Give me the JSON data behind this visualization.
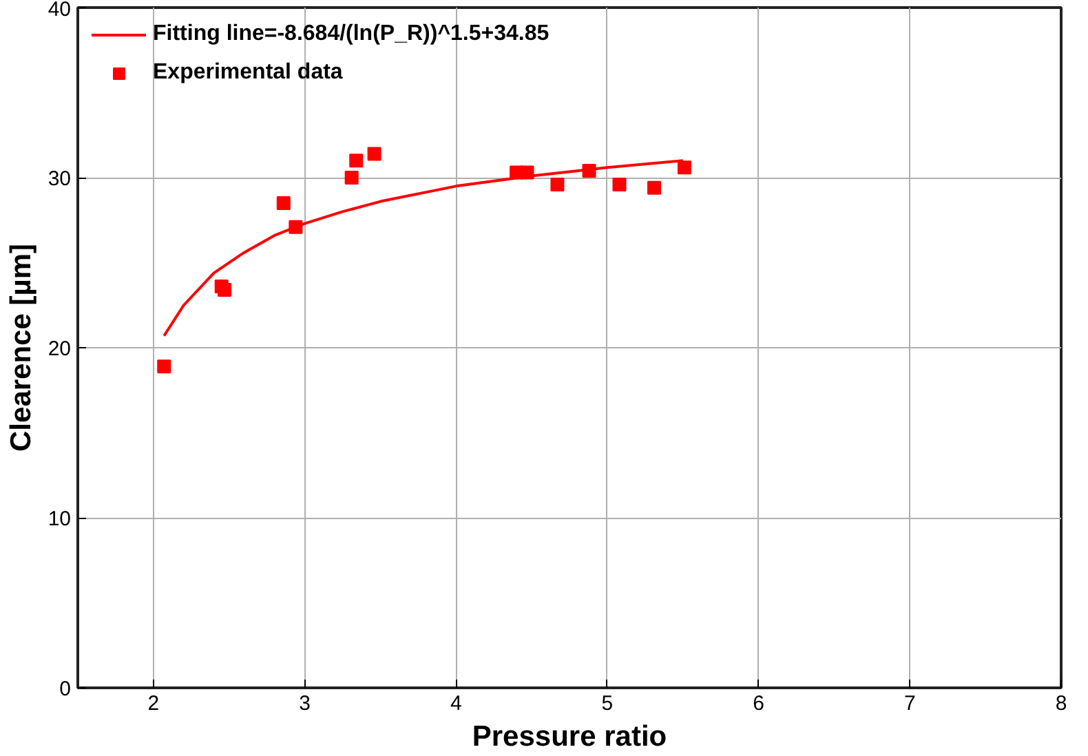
{
  "chart_data": {
    "type": "scatter",
    "xlabel": "Pressure ratio",
    "ylabel": "Clearence [µm]",
    "xlim": [
      1.5,
      8
    ],
    "ylim": [
      0,
      40
    ],
    "xticks": [
      2,
      3,
      4,
      5,
      6,
      7,
      8
    ],
    "yticks": [
      0,
      10,
      20,
      30,
      40
    ],
    "grid": true,
    "legend": "top left",
    "series": [
      {
        "name": "Fitting line=-8.684/(ln(P_R))^1.5+34.85",
        "type": "line",
        "color": "#ff0000",
        "line_style": "solid",
        "x": [
          2.07,
          2.2,
          2.4,
          2.6,
          2.8,
          3.0,
          3.25,
          3.5,
          4.0,
          4.5,
          5.0,
          5.5
        ],
        "values": [
          20.7,
          22.5,
          24.4,
          25.6,
          26.6,
          27.3,
          28.0,
          28.6,
          29.5,
          30.1,
          30.6,
          31.0
        ]
      },
      {
        "name": "Experimental data",
        "marker": "square",
        "color": "#ff0000",
        "x": [
          2.07,
          2.45,
          2.47,
          2.86,
          2.94,
          3.31,
          3.34,
          3.46,
          4.4,
          4.47,
          4.67,
          4.88,
          5.08,
          5.31,
          5.51
        ],
        "values": [
          18.9,
          23.6,
          23.4,
          28.5,
          27.1,
          30.0,
          31.0,
          31.4,
          30.3,
          30.3,
          29.6,
          30.4,
          29.6,
          29.4,
          30.6
        ]
      }
    ]
  }
}
